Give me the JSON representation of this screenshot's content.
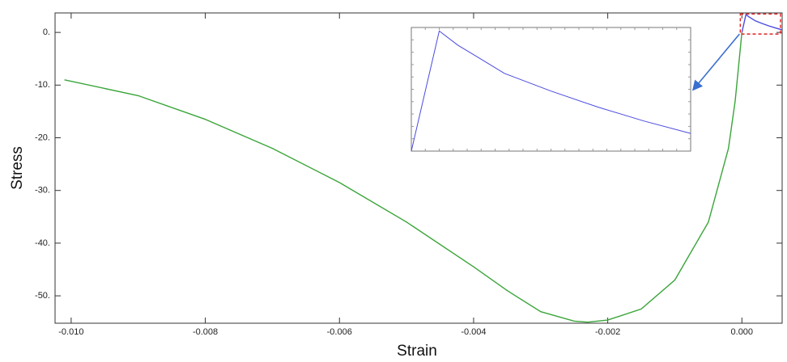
{
  "chart_data": {
    "type": "line",
    "x_label": "Strain",
    "y_label": "Stress",
    "xlim": [
      -0.01024,
      0.0006
    ],
    "ylim": [
      -55.2,
      3.7
    ],
    "xticks": [
      {
        "value": -0.01,
        "label": "-0.010"
      },
      {
        "value": -0.008,
        "label": "-0.008"
      },
      {
        "value": -0.006,
        "label": "-0.006"
      },
      {
        "value": -0.004,
        "label": "-0.004"
      },
      {
        "value": -0.002,
        "label": "-0.002"
      },
      {
        "value": 0,
        "label": "0.000"
      }
    ],
    "yticks": [
      {
        "value": 0,
        "label": "0."
      },
      {
        "value": -10,
        "label": "-10."
      },
      {
        "value": -20,
        "label": "-20."
      },
      {
        "value": -30,
        "label": "-30."
      },
      {
        "value": -40,
        "label": "-40."
      },
      {
        "value": -50,
        "label": "-50."
      }
    ],
    "series": [
      {
        "color": "#3aa53a",
        "x": [
          -0.0101,
          -0.009,
          -0.008,
          -0.007,
          -0.006,
          -0.005,
          -0.004,
          -0.0035,
          -0.003,
          -0.0025,
          -0.0023,
          -0.002,
          -0.0015,
          -0.001,
          -0.0005,
          -0.0002,
          -0.0001,
          0
        ],
        "values": [
          -9,
          -12,
          -16.5,
          -22,
          -28.5,
          -36,
          -44.5,
          -49,
          -53,
          -54.8,
          -55,
          -54.6,
          -52.5,
          -47,
          -36,
          -22,
          -13,
          0
        ]
      },
      {
        "color": "#4a4ae0",
        "x": [
          0,
          6e-05,
          0.0001,
          0.00015,
          0.0002,
          0.0003,
          0.0004,
          0.0005,
          0.0006
        ],
        "values": [
          0,
          3.4,
          3.0,
          2.6,
          2.2,
          1.7,
          1.25,
          0.85,
          0.5
        ]
      }
    ],
    "inset": {
      "xlim": [
        0,
        0.0006
      ],
      "ylim": [
        0,
        3.5
      ],
      "series": 1,
      "zoom_color": "#e02020",
      "arrow_color": "#3a6fd0"
    }
  }
}
